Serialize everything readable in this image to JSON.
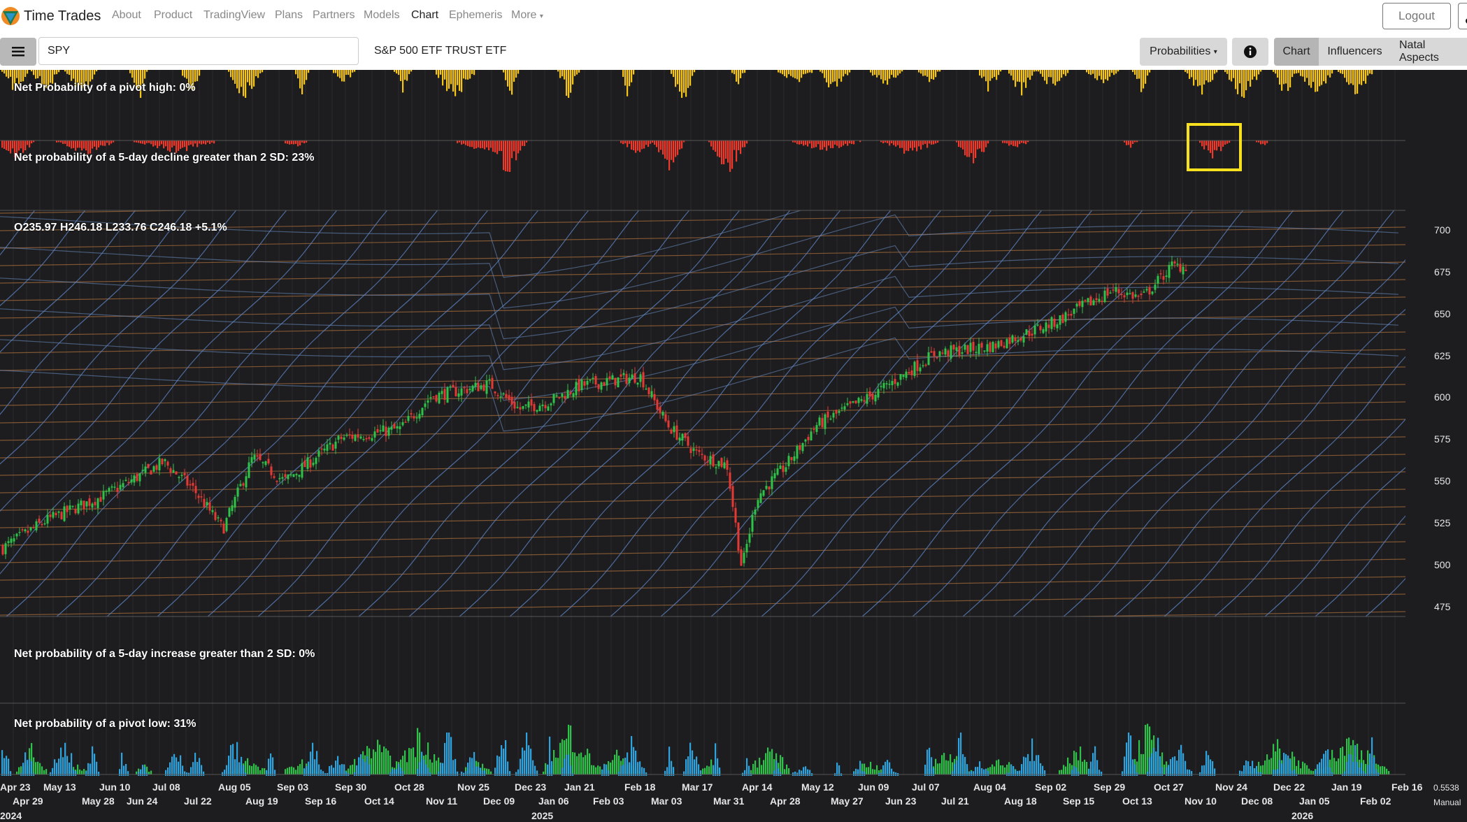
{
  "nav": {
    "brand": "Time Trades",
    "links": [
      "About",
      "Product",
      "TradingView",
      "Plans",
      "Partners",
      "Models",
      "Chart",
      "Ephemeris",
      "More"
    ],
    "active": "Chart",
    "logout": "Logout"
  },
  "toolbar": {
    "symbol": "SPY",
    "symbol_name": "S&P 500 ETF TRUST ETF",
    "probabilities": "Probabilities",
    "tabs": [
      "Chart",
      "Influencers",
      "Natal Aspects"
    ]
  },
  "panels": {
    "pivot_high": "Net Probability of a pivot high: 0%",
    "decline": "Net probability of a 5-day decline greater than 2 SD: 23%",
    "ohlc": "O235.97 H246.18 L233.76 C246.18 +5.1%",
    "increase": "Net probability of a 5-day increase greater than 2 SD: 0%",
    "pivot_low": "Net probability of a pivot low: 31%"
  },
  "price_ticks": [
    "700",
    "675",
    "650",
    "625",
    "600",
    "575",
    "550",
    "525",
    "500",
    "475"
  ],
  "x_ticks_row1": [
    "Apr 23",
    "May 13",
    "Jun 10",
    "Jul 08",
    "Aug 05",
    "Sep 03",
    "Sep 30",
    "Oct 28",
    "Nov 25",
    "Dec 23",
    "Jan 21",
    "Feb 18",
    "Mar 17",
    "Apr 14",
    "May 12",
    "Jun 09",
    "Jul 07",
    "Aug 04",
    "Sep 02",
    "Sep 29",
    "Oct 27",
    "Nov 24",
    "Dec 22",
    "Jan 19",
    "Feb 16"
  ],
  "x_ticks_row2": [
    "Apr 29",
    "May 28",
    "Jun 24",
    "Jul 22",
    "Aug 19",
    "Sep 16",
    "Oct 14",
    "Nov 11",
    "Dec 09",
    "Jan 06",
    "Feb 03",
    "Mar 03",
    "Mar 31",
    "Apr 28",
    "May 27",
    "Jun 23",
    "Jul 21",
    "Aug 18",
    "Sep 15",
    "Oct 13",
    "Nov 10",
    "Dec 08",
    "Jan 05",
    "Feb 02"
  ],
  "years": [
    "2024",
    "2025",
    "2026"
  ],
  "scale": {
    "value": "0.5538",
    "mode": "Manual"
  },
  "colors": {
    "pivot_high": "#f5c518",
    "decline": "#ee3a2c",
    "increase": "#2fc24a",
    "pivot_low": "#2ea3dd",
    "up_candle": "#2fc24a",
    "down_candle": "#e53935",
    "highlight": "#f7e01e"
  },
  "chart_data": {
    "type": "candlestick",
    "ylim": [
      460,
      715
    ],
    "x_start": "Apr 23 2024",
    "x_end": "Feb 16 2026",
    "close_path": [
      {
        "date": "Apr 23 2024",
        "close": 503
      },
      {
        "date": "May 13 2024",
        "close": 520
      },
      {
        "date": "Jun 10 2024",
        "close": 536
      },
      {
        "date": "Jul 08 2024",
        "close": 557
      },
      {
        "date": "Jul 22 2024",
        "close": 540
      },
      {
        "date": "Aug 05 2024",
        "close": 515
      },
      {
        "date": "Aug 19 2024",
        "close": 560
      },
      {
        "date": "Sep 03 2024",
        "close": 545
      },
      {
        "date": "Sep 30 2024",
        "close": 572
      },
      {
        "date": "Oct 28 2024",
        "close": 578
      },
      {
        "date": "Nov 11 2024",
        "close": 598
      },
      {
        "date": "Dec 09 2024",
        "close": 606
      },
      {
        "date": "Dec 23 2024",
        "close": 590
      },
      {
        "date": "Jan 06 2025",
        "close": 595
      },
      {
        "date": "Jan 21 2025",
        "close": 605
      },
      {
        "date": "Feb 18 2025",
        "close": 611
      },
      {
        "date": "Mar 03 2025",
        "close": 580
      },
      {
        "date": "Mar 17 2025",
        "close": 562
      },
      {
        "date": "Mar 31 2025",
        "close": 555
      },
      {
        "date": "Apr 07 2025",
        "close": 490
      },
      {
        "date": "Apr 14 2025",
        "close": 535
      },
      {
        "date": "Apr 28 2025",
        "close": 555
      },
      {
        "date": "May 12 2025",
        "close": 580
      },
      {
        "date": "Jun 09 2025",
        "close": 600
      },
      {
        "date": "Jul 07 2025",
        "close": 625
      },
      {
        "date": "Aug 04 2025",
        "close": 630
      },
      {
        "date": "Sep 02 2025",
        "close": 645
      },
      {
        "date": "Sep 29 2025",
        "close": 665
      },
      {
        "date": "Oct 13 2025",
        "close": 660
      },
      {
        "date": "Oct 27 2025",
        "close": 680
      },
      {
        "date": "Nov 03 2025",
        "close": 680
      }
    ]
  }
}
